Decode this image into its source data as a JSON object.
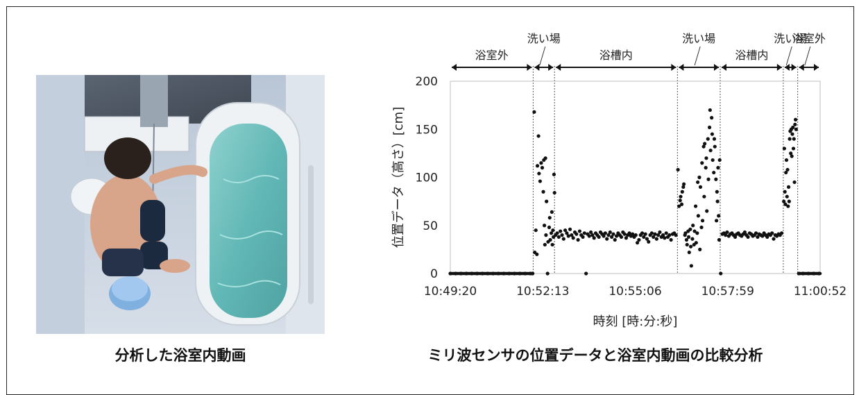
{
  "captions": {
    "left": "分析した浴室内動画",
    "right": "ミリ波センサの位置データと浴室内動画の比較分析"
  },
  "photo": {
    "description_icon": "bathroom-photo"
  },
  "chart_data": {
    "type": "scatter",
    "title": "",
    "xlabel": "時刻 [時:分:秒]",
    "ylabel": "位置データ（高さ）[cm]",
    "ylim": [
      0,
      200
    ],
    "yticks": [
      "0",
      "50",
      "100",
      "150",
      "200"
    ],
    "xticks": [
      "10:49:20",
      "10:52:13",
      "10:55:06",
      "10:57:59",
      "11:00:52"
    ],
    "x_unit": "seconds since 10:49:20",
    "xlim": [
      0,
      692
    ],
    "grid": false,
    "zones": [
      {
        "label": "浴室外",
        "start": 0,
        "end": 155
      },
      {
        "label": "洗い場",
        "start": 155,
        "end": 195
      },
      {
        "label": "浴槽内",
        "start": 195,
        "end": 425
      },
      {
        "label": "洗い場",
        "start": 425,
        "end": 505
      },
      {
        "label": "浴槽内",
        "start": 505,
        "end": 623
      },
      {
        "label": "洗い場",
        "start": 623,
        "end": 650
      },
      {
        "label": "浴室外",
        "start": 650,
        "end": 692
      }
    ],
    "series": [
      {
        "points": [
          [
            0,
            0
          ],
          [
            10,
            0
          ],
          [
            20,
            0
          ],
          [
            30,
            0
          ],
          [
            40,
            0
          ],
          [
            50,
            0
          ],
          [
            60,
            0
          ],
          [
            70,
            0
          ],
          [
            80,
            0
          ],
          [
            90,
            0
          ],
          [
            100,
            0
          ],
          [
            110,
            0
          ],
          [
            120,
            0
          ],
          [
            130,
            0
          ],
          [
            140,
            0
          ],
          [
            150,
            0
          ],
          [
            154,
            0
          ],
          [
            157,
            168
          ],
          [
            158,
            22
          ],
          [
            160,
            45
          ],
          [
            162,
            20
          ],
          [
            163,
            112
          ],
          [
            165,
            143
          ],
          [
            166,
            104
          ],
          [
            168,
            96
          ],
          [
            170,
            115
          ],
          [
            172,
            110
          ],
          [
            174,
            85
          ],
          [
            175,
            118
          ],
          [
            176,
            50
          ],
          [
            177,
            30
          ],
          [
            178,
            120
          ],
          [
            179,
            40
          ],
          [
            180,
            75
          ],
          [
            182,
            0
          ],
          [
            183,
            33
          ],
          [
            185,
            48
          ],
          [
            186,
            58
          ],
          [
            187,
            35
          ],
          [
            189,
            42
          ],
          [
            190,
            64
          ],
          [
            191,
            30
          ],
          [
            192,
            45
          ],
          [
            193,
            38
          ],
          [
            194,
            103
          ],
          [
            195,
            84
          ],
          [
            197,
            40
          ],
          [
            200,
            42
          ],
          [
            203,
            38
          ],
          [
            206,
            44
          ],
          [
            209,
            40
          ],
          [
            212,
            36
          ],
          [
            215,
            45
          ],
          [
            218,
            42
          ],
          [
            221,
            39
          ],
          [
            224,
            46
          ],
          [
            227,
            40
          ],
          [
            230,
            37
          ],
          [
            233,
            43
          ],
          [
            236,
            41
          ],
          [
            239,
            35
          ],
          [
            242,
            44
          ],
          [
            245,
            40
          ],
          [
            248,
            38
          ],
          [
            251,
            42
          ],
          [
            254,
            0
          ],
          [
            257,
            41
          ],
          [
            260,
            39
          ],
          [
            263,
            43
          ],
          [
            266,
            40
          ],
          [
            269,
            37
          ],
          [
            272,
            42
          ],
          [
            275,
            40
          ],
          [
            278,
            38
          ],
          [
            281,
            43
          ],
          [
            284,
            41
          ],
          [
            287,
            39
          ],
          [
            290,
            42
          ],
          [
            293,
            36
          ],
          [
            296,
            40
          ],
          [
            299,
            43
          ],
          [
            302,
            38
          ],
          [
            305,
            41
          ],
          [
            308,
            35
          ],
          [
            311,
            39
          ],
          [
            314,
            42
          ],
          [
            317,
            40
          ],
          [
            320,
            38
          ],
          [
            323,
            43
          ],
          [
            326,
            41
          ],
          [
            329,
            37
          ],
          [
            332,
            40
          ],
          [
            335,
            42
          ],
          [
            338,
            39
          ],
          [
            341,
            41
          ],
          [
            344,
            38
          ],
          [
            347,
            40
          ],
          [
            350,
            32
          ],
          [
            353,
            35
          ],
          [
            356,
            40
          ],
          [
            359,
            42
          ],
          [
            362,
            38
          ],
          [
            365,
            41
          ],
          [
            368,
            36
          ],
          [
            371,
            33
          ],
          [
            374,
            40
          ],
          [
            377,
            42
          ],
          [
            380,
            38
          ],
          [
            383,
            41
          ],
          [
            386,
            36
          ],
          [
            389,
            40
          ],
          [
            392,
            43
          ],
          [
            395,
            38
          ],
          [
            398,
            40
          ],
          [
            401,
            37
          ],
          [
            404,
            42
          ],
          [
            407,
            38
          ],
          [
            410,
            40
          ],
          [
            413,
            35
          ],
          [
            416,
            41
          ],
          [
            419,
            42
          ],
          [
            422,
            40
          ],
          [
            426,
            108
          ],
          [
            428,
            70
          ],
          [
            430,
            76
          ],
          [
            431,
            80
          ],
          [
            433,
            72
          ],
          [
            434,
            85
          ],
          [
            436,
            90
          ],
          [
            437,
            93
          ],
          [
            439,
            40
          ],
          [
            440,
            42
          ],
          [
            442,
            35
          ],
          [
            443,
            30
          ],
          [
            445,
            44
          ],
          [
            446,
            38
          ],
          [
            447,
            22
          ],
          [
            449,
            46
          ],
          [
            450,
            28
          ],
          [
            451,
            8
          ],
          [
            453,
            36
          ],
          [
            454,
            50
          ],
          [
            456,
            30
          ],
          [
            457,
            44
          ],
          [
            459,
            70
          ],
          [
            460,
            32
          ],
          [
            462,
            42
          ],
          [
            463,
            95
          ],
          [
            464,
            60
          ],
          [
            466,
            100
          ],
          [
            467,
            25
          ],
          [
            468,
            90
          ],
          [
            470,
            48
          ],
          [
            471,
            115
          ],
          [
            472,
            55
          ],
          [
            474,
            132
          ],
          [
            475,
            80
          ],
          [
            476,
            135
          ],
          [
            478,
            110
          ],
          [
            479,
            120
          ],
          [
            480,
            65
          ],
          [
            482,
            140
          ],
          [
            483,
            98
          ],
          [
            485,
            152
          ],
          [
            486,
            170
          ],
          [
            487,
            128
          ],
          [
            489,
            162
          ],
          [
            490,
            145
          ],
          [
            491,
            118
          ],
          [
            493,
            105
          ],
          [
            494,
            140
          ],
          [
            495,
            132
          ],
          [
            497,
            98
          ],
          [
            498,
            55
          ],
          [
            499,
            85
          ],
          [
            500,
            75
          ],
          [
            501,
            110
          ],
          [
            502,
            60
          ],
          [
            503,
            35
          ],
          [
            504,
            118
          ],
          [
            506,
            0
          ],
          [
            509,
            41
          ],
          [
            512,
            42
          ],
          [
            515,
            40
          ],
          [
            518,
            43
          ],
          [
            521,
            39
          ],
          [
            524,
            41
          ],
          [
            527,
            42
          ],
          [
            530,
            40
          ],
          [
            533,
            38
          ],
          [
            536,
            41
          ],
          [
            539,
            42
          ],
          [
            542,
            40
          ],
          [
            545,
            39
          ],
          [
            548,
            41
          ],
          [
            551,
            43
          ],
          [
            554,
            40
          ],
          [
            557,
            38
          ],
          [
            560,
            42
          ],
          [
            563,
            41
          ],
          [
            566,
            39
          ],
          [
            569,
            40
          ],
          [
            572,
            42
          ],
          [
            575,
            38
          ],
          [
            578,
            41
          ],
          [
            581,
            40
          ],
          [
            584,
            39
          ],
          [
            587,
            42
          ],
          [
            590,
            40
          ],
          [
            593,
            38
          ],
          [
            596,
            41
          ],
          [
            599,
            40
          ],
          [
            602,
            42
          ],
          [
            605,
            36
          ],
          [
            608,
            40
          ],
          [
            611,
            39
          ],
          [
            614,
            41
          ],
          [
            617,
            40
          ],
          [
            620,
            42
          ],
          [
            624,
            75
          ],
          [
            625,
            130
          ],
          [
            626,
            85
          ],
          [
            627,
            72
          ],
          [
            628,
            105
          ],
          [
            629,
            118
          ],
          [
            630,
            80
          ],
          [
            631,
            108
          ],
          [
            632,
            70
          ],
          [
            633,
            90
          ],
          [
            634,
            75
          ],
          [
            635,
            140
          ],
          [
            636,
            148
          ],
          [
            637,
            125
          ],
          [
            638,
            150
          ],
          [
            639,
            122
          ],
          [
            640,
            145
          ],
          [
            641,
            152
          ],
          [
            642,
            130
          ],
          [
            643,
            140
          ],
          [
            644,
            95
          ],
          [
            645,
            155
          ],
          [
            646,
            160
          ],
          [
            647,
            150
          ],
          [
            652,
            0
          ],
          [
            660,
            0
          ],
          [
            670,
            0
          ],
          [
            680,
            0
          ],
          [
            690,
            0
          ]
        ]
      }
    ]
  }
}
